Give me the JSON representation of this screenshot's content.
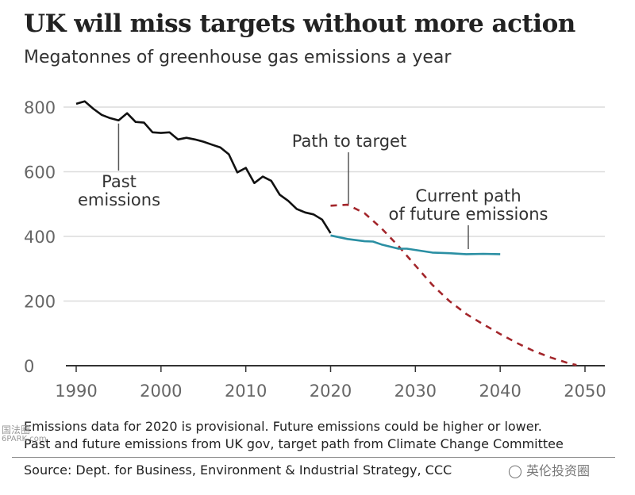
{
  "chart_data": {
    "type": "line",
    "title": "UK will miss targets without more action",
    "subtitle": "Megatonnes of greenhouse gas emissions a year",
    "xlabel": "",
    "ylabel": "",
    "xlim": [
      1989,
      2052
    ],
    "ylim": [
      0,
      800
    ],
    "x_ticks": [
      1990,
      2000,
      2010,
      2020,
      2030,
      2040,
      2050
    ],
    "y_ticks": [
      0,
      200,
      400,
      600,
      800
    ],
    "grid": true,
    "series": [
      {
        "name": "Past emissions",
        "style": "solid",
        "color": "#111111",
        "x": [
          1990,
          1991,
          1992,
          1993,
          1994,
          1995,
          1996,
          1997,
          1998,
          1999,
          2000,
          2001,
          2002,
          2003,
          2004,
          2005,
          2006,
          2007,
          2008,
          2009,
          2010,
          2011,
          2012,
          2013,
          2014,
          2015,
          2016,
          2017,
          2018,
          2019,
          2020
        ],
        "y": [
          810,
          818,
          795,
          776,
          766,
          759,
          781,
          754,
          752,
          722,
          720,
          722,
          700,
          705,
          700,
          693,
          684,
          675,
          654,
          598,
          612,
          565,
          585,
          572,
          529,
          510,
          485,
          474,
          468,
          452,
          410
        ]
      },
      {
        "name": "Path to target",
        "style": "dashed",
        "color": "#a3262b",
        "x": [
          2020,
          2022,
          2024,
          2026,
          2028,
          2030,
          2032,
          2034,
          2036,
          2038,
          2040,
          2042,
          2044,
          2046,
          2048,
          2049
        ],
        "y": [
          495,
          498,
          472,
          425,
          370,
          310,
          250,
          200,
          160,
          128,
          98,
          70,
          45,
          25,
          8,
          2
        ]
      },
      {
        "name": "Current path of future emissions",
        "style": "solid",
        "color": "#2a8fa3",
        "x": [
          2020,
          2022,
          2024,
          2025,
          2026,
          2028,
          2029,
          2030,
          2032,
          2034,
          2036,
          2038,
          2040
        ],
        "y": [
          403,
          392,
          385,
          384,
          375,
          362,
          362,
          358,
          350,
          348,
          345,
          346,
          345
        ]
      }
    ],
    "annotations": [
      {
        "text_lines": [
          "Past",
          "emissions"
        ],
        "x": 1995,
        "y": 759
      },
      {
        "text_lines": [
          "Path to target"
        ],
        "x": 2022,
        "y": 498
      },
      {
        "text_lines": [
          "Current path",
          "of future emissions"
        ],
        "x": 2036,
        "y": 345
      }
    ]
  },
  "notes": {
    "line1": "Emissions data for 2020 is provisional. Future emissions could be higher or lower.",
    "line2": "Past and future emissions from UK gov, target path from Climate Change Committee"
  },
  "source": "Source: Dept. for Business, Environment & Industrial Strategy, CCC",
  "watermarks": {
    "left_top": "国法圈",
    "left_bottom": "6PARK.com",
    "right": "英伦投资圈"
  }
}
